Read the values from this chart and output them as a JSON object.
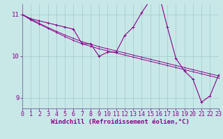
{
  "xlabel": "Windchill (Refroidissement éolien,°C)",
  "background_color": "#c8e8e8",
  "line_color": "#880088",
  "x_data": [
    0,
    1,
    2,
    3,
    4,
    5,
    6,
    7,
    8,
    9,
    10,
    11,
    12,
    13,
    14,
    15,
    16,
    17,
    18,
    19,
    20,
    21,
    22,
    23
  ],
  "y_main": [
    11.0,
    10.9,
    10.85,
    10.8,
    10.75,
    10.7,
    10.65,
    10.3,
    10.3,
    10.0,
    10.1,
    10.1,
    10.5,
    10.7,
    11.05,
    11.35,
    11.5,
    10.7,
    9.95,
    9.65,
    9.45,
    8.9,
    9.05,
    9.55
  ],
  "y_trend1": [
    11.0,
    10.87,
    10.77,
    10.67,
    10.57,
    10.47,
    10.38,
    10.3,
    10.24,
    10.18,
    10.13,
    10.08,
    10.03,
    9.98,
    9.93,
    9.88,
    9.83,
    9.78,
    9.73,
    9.68,
    9.63,
    9.58,
    9.53,
    9.48
  ],
  "y_trend2": [
    11.0,
    10.89,
    10.79,
    10.69,
    10.6,
    10.51,
    10.43,
    10.35,
    10.29,
    10.23,
    10.18,
    10.13,
    10.08,
    10.03,
    9.98,
    9.93,
    9.88,
    9.83,
    9.78,
    9.73,
    9.68,
    9.63,
    9.58,
    9.53
  ],
  "xlim": [
    0,
    23
  ],
  "ylim": [
    8.75,
    11.25
  ],
  "yticks": [
    9,
    10,
    11
  ],
  "xticks": [
    0,
    1,
    2,
    3,
    4,
    5,
    6,
    7,
    8,
    9,
    10,
    11,
    12,
    13,
    14,
    15,
    16,
    17,
    18,
    19,
    20,
    21,
    22,
    23
  ],
  "grid_color": "#a0c8c8",
  "marker_size": 2.5,
  "line_width": 0.8,
  "xlabel_fontsize": 6.5,
  "tick_fontsize": 6.0
}
